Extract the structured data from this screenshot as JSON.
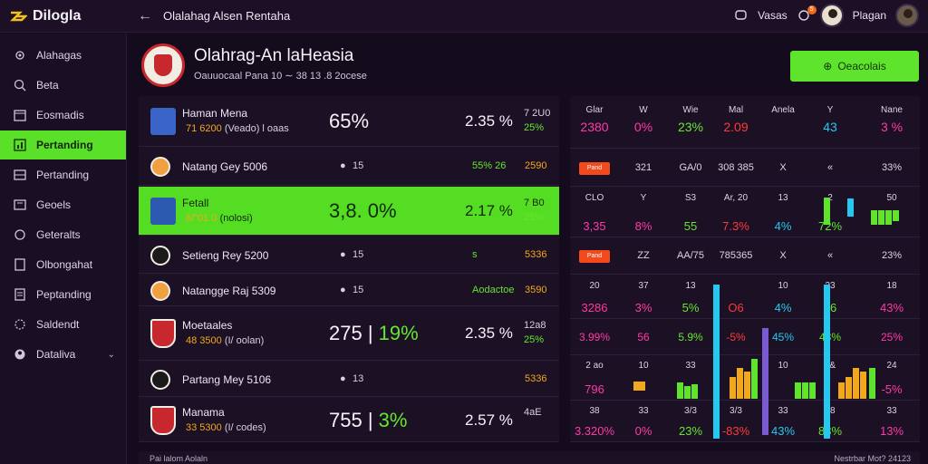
{
  "app": {
    "name": "Dilogla"
  },
  "topbar": {
    "title": "Olalahag Alsen Rentaha",
    "link1": "Vasas",
    "user": "Plagan",
    "notif_count": "5"
  },
  "sidebar": {
    "items": [
      {
        "label": "Alahagas",
        "icon": "gear-icon"
      },
      {
        "label": "Beta",
        "icon": "search-icon"
      },
      {
        "label": "Eosmadis",
        "icon": "calendar-icon"
      },
      {
        "label": "Pertanding",
        "icon": "chart-icon",
        "active": true
      },
      {
        "label": "Pertanding",
        "icon": "table-icon"
      },
      {
        "label": "Geoels",
        "icon": "list-icon"
      },
      {
        "label": "Geteralts",
        "icon": "settings-icon"
      },
      {
        "label": "Olbongahat",
        "icon": "book-icon"
      },
      {
        "label": "Peptanding",
        "icon": "doc-icon"
      },
      {
        "label": "Saldendt",
        "icon": "cog-icon"
      },
      {
        "label": "Dataliva",
        "icon": "user-icon"
      }
    ]
  },
  "header": {
    "team": "Olahrag-An laHeasia",
    "subtitle": "Oauuocaal Pana 10 ∼ 38 13 .8 2ocese",
    "cta": "Oeacolais"
  },
  "matches": [
    {
      "team": "Haman Mena",
      "sub_amt": "71 6200",
      "sub": "(Veado) l oaas",
      "pct": "65%",
      "odds": "2.35 %",
      "r1": "7 2U0",
      "r2": "25%",
      "crest": "#3a64c8",
      "type": "player"
    },
    {
      "team": "Natang Gey 5006",
      "dot": "15",
      "v1": "55% 26",
      "v2": "2590",
      "crest": "#f0a040",
      "type": "simple"
    },
    {
      "team": "Fetall",
      "sub_amt": "6/\"01 0",
      "sub": "(nolosi)",
      "pct": "3,8. 0%",
      "odds": "2.17 %",
      "r1": "7 B0",
      "r2": "25%",
      "crest": "#2c5ab0",
      "type": "player"
    },
    {
      "team": "Setieng Rey 5200",
      "dot": "15",
      "v1": "s",
      "v2": "5336",
      "crest": "#1a1a1a",
      "type": "simple"
    },
    {
      "team": "Natangge Raj 5309",
      "dot": "15",
      "v1": "Aodactoe",
      "v2": "3590",
      "crest": "#f0a040",
      "type": "simple"
    },
    {
      "team": "Moetaales",
      "sub_amt": "48 3500",
      "sub": "(I/ oolan)",
      "big1": "275",
      "big2": "19%",
      "odds": "2.35 %",
      "r1": "12a8",
      "r2": "25%",
      "crest": "#c6282d",
      "type": "crest"
    },
    {
      "team": "Partang Mey 5106",
      "dot": "13",
      "v1": "",
      "v2": "5336",
      "crest": "#1a1a1a",
      "type": "simple"
    },
    {
      "team": "Manama",
      "sub_amt": "33 5300",
      "sub": "(I/ codes)",
      "big1": "755",
      "big2": "3%",
      "odds": "2.57 %",
      "r1": "4aE",
      "r2": "",
      "crest": "#c6282d",
      "type": "crest"
    }
  ],
  "stats": {
    "headers": [
      "Glar",
      "W",
      "Wie",
      "Mal",
      "Anela",
      "Y",
      "Nane"
    ],
    "header_vals": [
      "2380",
      "0%",
      "23%",
      "2.09",
      "",
      "43",
      "3 %"
    ],
    "rows": [
      {
        "tag": "Pand",
        "cells": [
          "321",
          "GA/0",
          "308 385",
          "X",
          "«",
          "33%"
        ]
      },
      {
        "cells": [
          "CLO",
          "Y",
          "S3",
          "Ar, 20",
          "13",
          "2",
          "50"
        ],
        "vals": [
          "3,35",
          "8%",
          "55",
          "7.3%",
          "4%",
          "72%",
          ""
        ]
      },
      {
        "tag": "Pand",
        "cells": [
          "ZZ",
          "AA/75",
          "785365",
          "X",
          "«",
          "23%"
        ]
      },
      {
        "cells": [
          "20",
          "37",
          "13",
          "",
          "10",
          "33",
          "18"
        ],
        "vals": [
          "3286",
          "3%",
          "5%",
          "O6",
          "4%",
          "26",
          "43%"
        ]
      },
      {
        "cells": [
          "3.99%",
          "56",
          "5.9%",
          "-5%",
          "45%",
          "43%",
          "25%"
        ]
      },
      {
        "cells": [
          "2 ao",
          "10",
          "33",
          "",
          "10",
          "3&",
          "24"
        ],
        "vals": [
          "796",
          "",
          "",
          "",
          "",
          "",
          "-5%"
        ]
      },
      {
        "cells": [
          "38",
          "33",
          "3/3",
          "3/3",
          "33",
          "38",
          "33"
        ],
        "vals": [
          "3.320%",
          "0%",
          "23%",
          "-83%",
          "43%",
          "83%",
          "13%"
        ]
      }
    ]
  },
  "bottom": {
    "left": "Pai lalom Aolaln",
    "right": "Nestrbar Mot? 24123"
  }
}
